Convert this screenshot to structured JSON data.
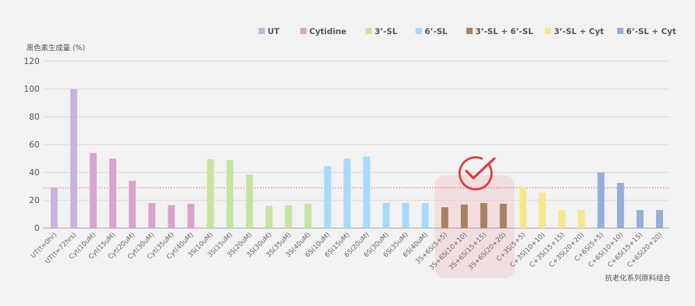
{
  "chart_data": {
    "type": "bar",
    "ylabel": "黑色素生成量 (%)",
    "xlabel": "抗老化系列原料组合",
    "ylim": [
      0,
      120
    ],
    "yticks": [
      0,
      20,
      40,
      60,
      80,
      100,
      120
    ],
    "reference_line": 29,
    "highlight_categories": [
      "3S+6S(5+5)",
      "3S+6S(10+10)",
      "3S+6S(15+15)",
      "3S+6S(20+20)"
    ],
    "legend_position": "top-right",
    "series": [
      {
        "name": "UT",
        "color": "#c9b4dc",
        "categories": [
          "UT(t=0hr)",
          "UT(t=72hrs)"
        ],
        "values": [
          29,
          100
        ]
      },
      {
        "name": "Cytidine",
        "color": "#d9a3cc",
        "categories": [
          "Cyt(10uM)",
          "Cyt(15uM)",
          "Cyt(20uM)",
          "Cyt(30uM)",
          "Cyt(35uM)",
          "Cyt(40uM)"
        ],
        "values": [
          54,
          50,
          34,
          18,
          16.5,
          17.5
        ]
      },
      {
        "name": "3’-SL",
        "color": "#c8e2a2",
        "categories": [
          "3S(10uM)",
          "3S(15uM)",
          "3S(20uM)",
          "3S(30uM)",
          "3S(35uM)",
          "3S(40uM)"
        ],
        "values": [
          49.5,
          49,
          38.5,
          16,
          16.5,
          17.5
        ]
      },
      {
        "name": "6’-SL",
        "color": "#a7dafa",
        "categories": [
          "6S(10uM)",
          "6S(15uM)",
          "6S(20uM)",
          "6S(30uM)",
          "6S(35uM)",
          "6S(40uM)"
        ],
        "values": [
          44.5,
          50,
          51.5,
          18,
          18,
          18
        ]
      },
      {
        "name": "3’-SL + 6’-SL",
        "color": "#a88361",
        "categories": [
          "3S+6S(5+5)",
          "3S+6S(10+10)",
          "3S+6S(15+15)",
          "3S+6S(20+20)"
        ],
        "values": [
          15,
          17,
          18,
          17.5
        ]
      },
      {
        "name": "3’-SL + Cyt",
        "color": "#f4e98a",
        "categories": [
          "C+3S(5+5)",
          "C+3S(10+10)",
          "C+3S(15+15)",
          "C+3S(20+20)"
        ],
        "values": [
          29.5,
          25.5,
          13,
          13
        ]
      },
      {
        "name": "6’-SL + Cyt",
        "color": "#99add9",
        "categories": [
          "C+6S(5+5)",
          "C+6S(10+10)",
          "C+6S(15+15)",
          "C+6S(20+20)"
        ],
        "values": [
          40,
          32.5,
          13,
          13
        ]
      }
    ]
  }
}
